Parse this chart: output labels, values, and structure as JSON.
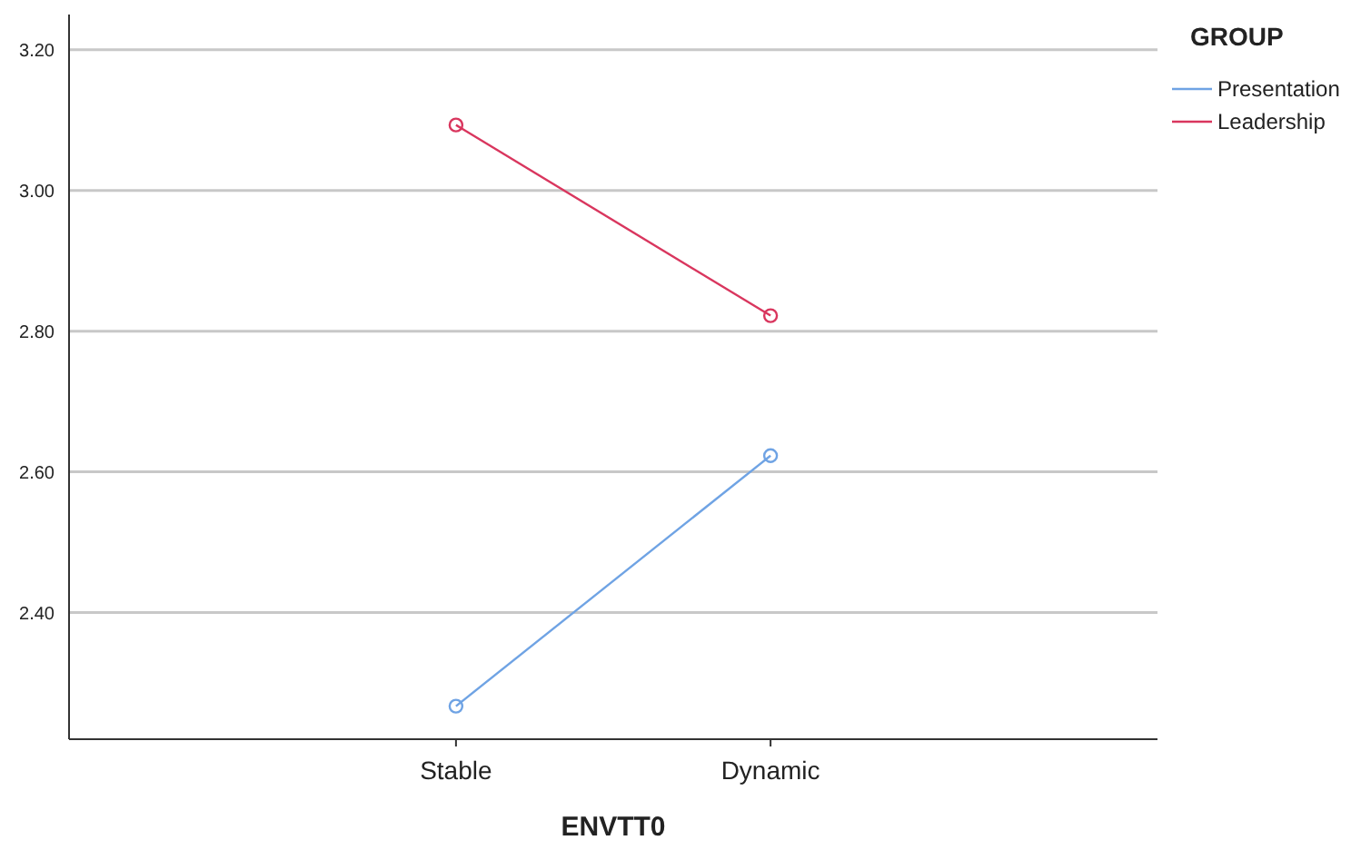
{
  "chart_data": {
    "type": "line",
    "xlabel": "ENVTT0",
    "legend_title": "GROUP",
    "categories": [
      "Stable",
      "Dynamic"
    ],
    "series": [
      {
        "name": "Presentation",
        "color": "#6fa3e4",
        "values": [
          2.267,
          2.623
        ]
      },
      {
        "name": "Leadership",
        "color": "#d9365e",
        "values": [
          3.093,
          2.822
        ]
      }
    ],
    "ylim": [
      2.22,
      3.25
    ],
    "yticks": [
      {
        "value": 2.4,
        "label": "2.40"
      },
      {
        "value": 2.6,
        "label": "2.60"
      },
      {
        "value": 2.8,
        "label": "2.80"
      },
      {
        "value": 3.0,
        "label": "3.00"
      },
      {
        "value": 3.2,
        "label": "3.20"
      }
    ],
    "grid": "y",
    "legend": "top right",
    "marker": "circle",
    "line_style": "solid"
  }
}
